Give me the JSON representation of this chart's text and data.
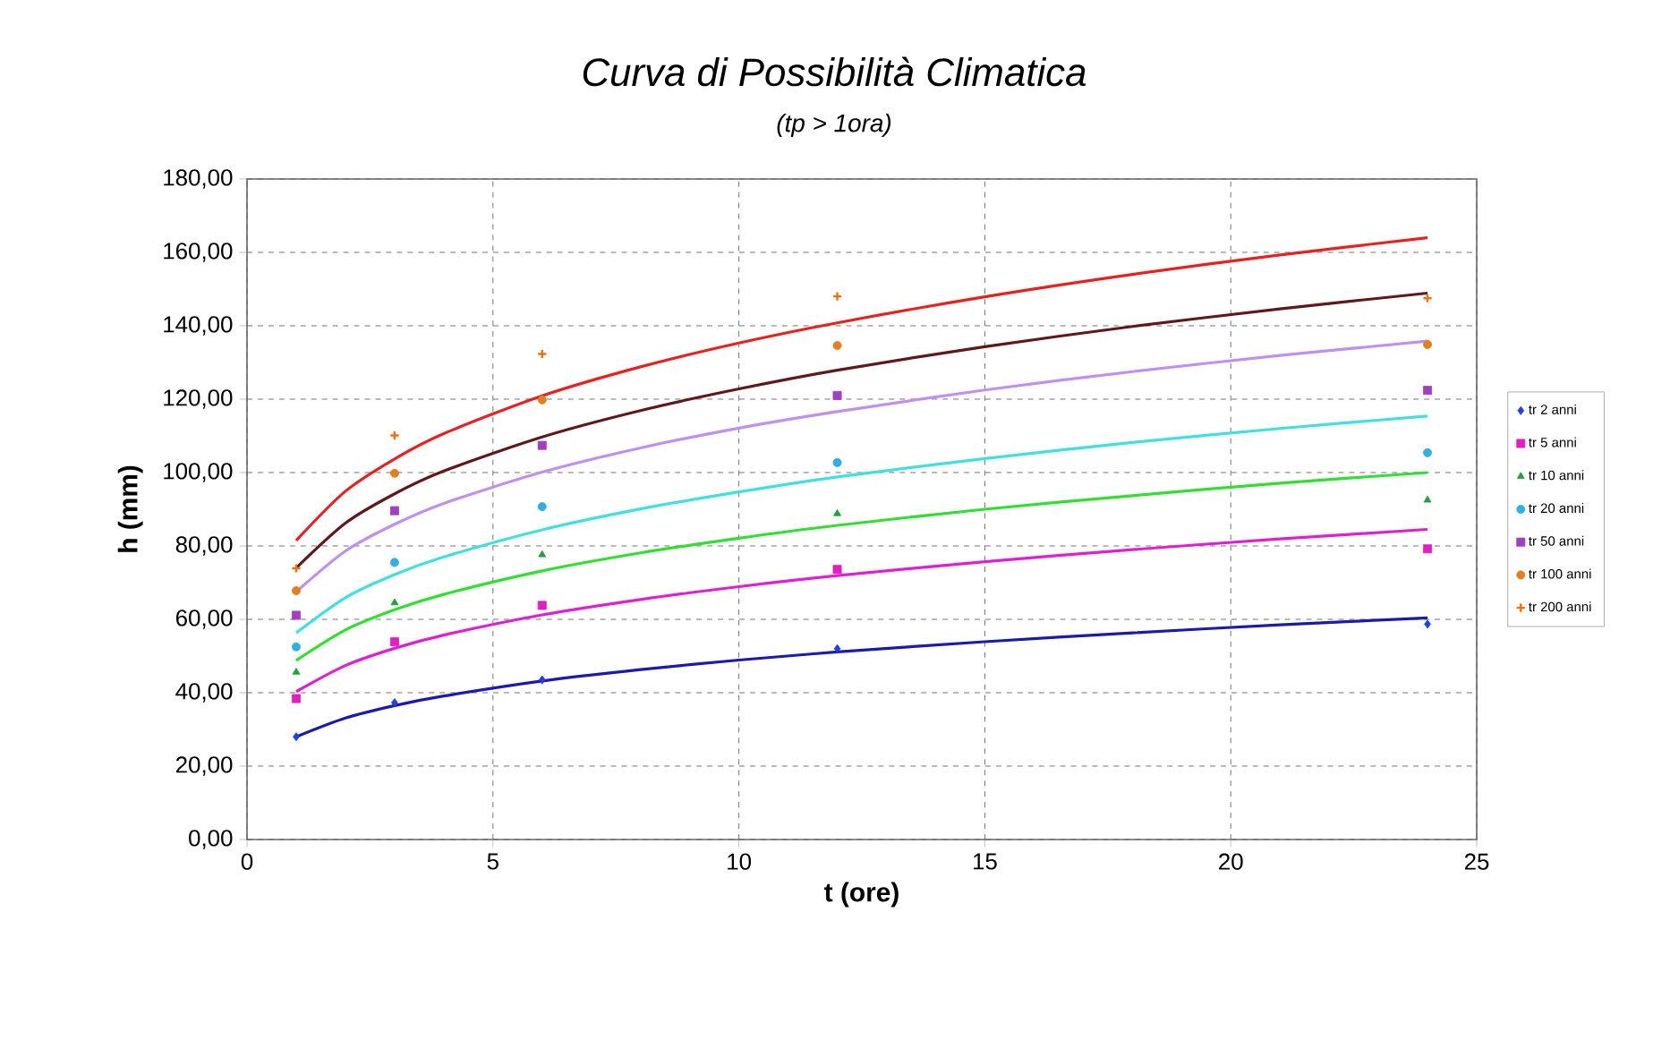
{
  "chart_data": {
    "type": "scatter",
    "title": "Curva di Possibilità Climatica",
    "subtitle": "(tp > 1ora)",
    "xlabel": "t (ore)",
    "ylabel": "h (mm)",
    "xlim": [
      0,
      25
    ],
    "xticks": [
      0,
      5,
      10,
      15,
      20,
      25
    ],
    "ylim": [
      0,
      180
    ],
    "yticks": [
      {
        "value": 0,
        "label": "0,00"
      },
      {
        "value": 20,
        "label": "20,00"
      },
      {
        "value": 40,
        "label": "40,00"
      },
      {
        "value": 60,
        "label": "60,00"
      },
      {
        "value": 80,
        "label": "80,00"
      },
      {
        "value": 100,
        "label": "100,00"
      },
      {
        "value": 120,
        "label": "120,00"
      },
      {
        "value": 140,
        "label": "140,00"
      },
      {
        "value": 160,
        "label": "160,00"
      },
      {
        "value": 180,
        "label": "180,00"
      }
    ],
    "grid": true,
    "legend": "right",
    "series": [
      {
        "name": "tr 2 anni",
        "marker": "diamond",
        "color": "#2040e0",
        "x": [
          1,
          3,
          6,
          12,
          24
        ],
        "values": [
          28.0,
          37.3,
          43.5,
          52.0,
          58.7
        ]
      },
      {
        "name": "tr 5 anni",
        "marker": "square",
        "color": "#e020c0",
        "x": [
          1,
          3,
          6,
          12,
          24
        ],
        "values": [
          38.4,
          53.9,
          63.8,
          73.6,
          79.2
        ]
      },
      {
        "name": "tr 10 anni",
        "marker": "triangle",
        "color": "#20a040",
        "x": [
          1,
          3,
          6,
          12,
          24
        ],
        "values": [
          45.6,
          64.5,
          77.6,
          88.8,
          92.5
        ]
      },
      {
        "name": "tr 20 anni",
        "marker": "circle",
        "color": "#30b0e0",
        "x": [
          1,
          3,
          6,
          12,
          24
        ],
        "values": [
          52.5,
          75.5,
          90.7,
          102.7,
          105.4
        ]
      },
      {
        "name": "tr 50 anni",
        "marker": "square",
        "color": "#a040c0",
        "x": [
          1,
          3,
          6,
          12,
          24
        ],
        "values": [
          61.1,
          89.6,
          107.4,
          121.0,
          122.4
        ]
      },
      {
        "name": "tr 100 anni",
        "marker": "circle",
        "color": "#e08020",
        "x": [
          1,
          3,
          6,
          12,
          24
        ],
        "values": [
          67.8,
          99.8,
          119.8,
          134.6,
          134.9
        ]
      },
      {
        "name": "tr 200 anni",
        "marker": "cross",
        "color": "#f07010",
        "x": [
          1,
          3,
          6,
          12,
          24
        ],
        "values": [
          73.9,
          110.1,
          132.3,
          148.0,
          147.5
        ]
      },
      {
        "type": "line",
        "marker": "none",
        "color": "#1a1ab0",
        "x": [
          1,
          2,
          3,
          4,
          6,
          8,
          10,
          12,
          15,
          18,
          21,
          24
        ],
        "values": [
          28,
          33.1,
          36.5,
          39.1,
          43.2,
          46.3,
          48.9,
          51.1,
          53.9,
          56.3,
          58.5,
          60.4
        ]
      },
      {
        "type": "line",
        "marker": "none",
        "color": "#e020d0",
        "x": [
          1,
          2,
          3,
          4,
          6,
          8,
          10,
          12,
          15,
          18,
          21,
          24
        ],
        "values": [
          40.3,
          47.4,
          52.1,
          55.7,
          61.2,
          65.4,
          68.9,
          71.9,
          75.7,
          79.0,
          81.9,
          84.5
        ]
      },
      {
        "type": "line",
        "marker": "none",
        "color": "#30e030",
        "x": [
          1,
          2,
          3,
          4,
          6,
          8,
          10,
          12,
          15,
          18,
          21,
          24
        ],
        "values": [
          48.8,
          57.1,
          62.6,
          66.8,
          73.2,
          78.1,
          82.1,
          85.6,
          90.0,
          93.7,
          97.1,
          100.0
        ]
      },
      {
        "type": "line",
        "marker": "none",
        "color": "#40e0e0",
        "x": [
          1,
          2,
          3,
          4,
          6,
          8,
          10,
          12,
          15,
          18,
          21,
          24
        ],
        "values": [
          56.3,
          65.9,
          72.2,
          77.0,
          84.4,
          90.1,
          94.7,
          98.8,
          103.8,
          108.2,
          112.0,
          115.4
        ]
      },
      {
        "type": "line",
        "marker": "none",
        "color": "#c090f0",
        "x": [
          1,
          2,
          3,
          4,
          6,
          8,
          10,
          12,
          15,
          18,
          21,
          24
        ],
        "values": [
          67.5,
          78.6,
          85.9,
          91.6,
          100.1,
          106.7,
          112.1,
          116.6,
          122.5,
          127.5,
          131.9,
          135.8
        ]
      },
      {
        "type": "line",
        "marker": "none",
        "color": "#601818",
        "x": [
          1,
          2,
          3,
          4,
          6,
          8,
          10,
          12,
          15,
          18,
          21,
          24
        ],
        "values": [
          74,
          86.2,
          94.2,
          100.4,
          109.7,
          116.9,
          122.8,
          127.9,
          134.3,
          139.8,
          144.6,
          148.9
        ]
      },
      {
        "type": "line",
        "marker": "none",
        "color": "#e82020",
        "x": [
          1,
          2,
          3,
          4,
          6,
          8,
          10,
          12,
          15,
          18,
          21,
          24
        ],
        "values": [
          81.5,
          94.9,
          103.7,
          110.6,
          120.9,
          128.8,
          135.3,
          140.8,
          147.9,
          154.0,
          159.3,
          164.0
        ]
      }
    ]
  }
}
